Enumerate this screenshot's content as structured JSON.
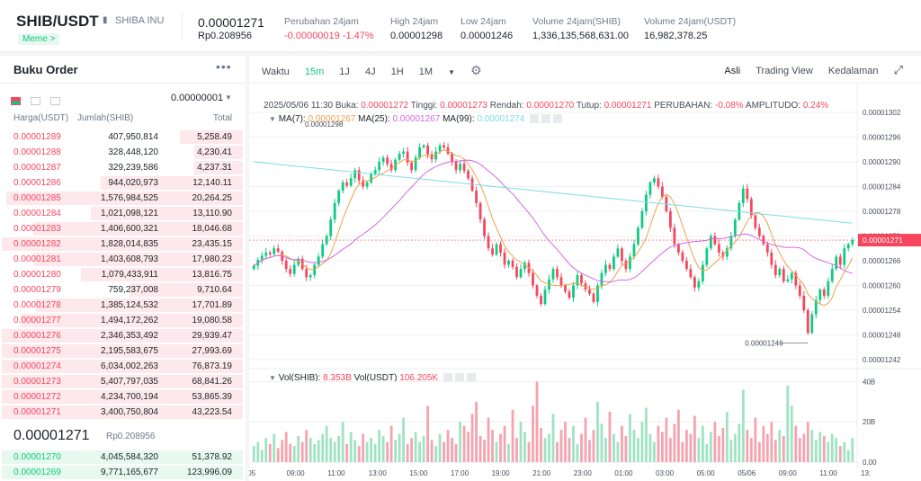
{
  "header": {
    "pair": "SHIB/USDT",
    "icon": "book-icon",
    "name": "SHIBA INU",
    "tag": "Meme",
    "tag_arrow": ">",
    "last_price": "0.00001271",
    "last_price_idr": "Rp0.208956",
    "stats": [
      {
        "label": "Perubahan 24jam",
        "value": "-0.00000019 -1.47%",
        "color": "#f6465d"
      },
      {
        "label": "High 24jam",
        "value": "0.00001298"
      },
      {
        "label": "Low 24jam",
        "value": "0.00001246"
      },
      {
        "label": "Volume 24jam(SHIB)",
        "value": "1,336,135,568,631.00"
      },
      {
        "label": "Volume 24jam(USDT)",
        "value": "16,982,378.25"
      }
    ]
  },
  "orderbook": {
    "title": "Buku Order",
    "more": "•••",
    "precision": "0.00000001",
    "precision_arrow": "▼",
    "headers": [
      "Harga(USDT)",
      "Jumlah(SHIB)",
      "Total"
    ],
    "asks": [
      {
        "price": "0.00001289",
        "amount": "407,950,814",
        "total": "5,258.49",
        "depth": 0.26
      },
      {
        "price": "0.00001288",
        "amount": "328,448,120",
        "total": "4,230.41",
        "depth": 0.2
      },
      {
        "price": "0.00001287",
        "amount": "329,239,586",
        "total": "4,237.31",
        "depth": 0.2
      },
      {
        "price": "0.00001286",
        "amount": "944,020,973",
        "total": "12,140.11",
        "depth": 0.59
      },
      {
        "price": "0.00001285",
        "amount": "1,576,984,525",
        "total": "20,264.25",
        "depth": 0.98
      },
      {
        "price": "0.00001284",
        "amount": "1,021,098,121",
        "total": "13,110.90",
        "depth": 0.63
      },
      {
        "price": "0.00001283",
        "amount": "1,406,600,321",
        "total": "18,046.68",
        "depth": 0.87
      },
      {
        "price": "0.00001282",
        "amount": "1,828,014,835",
        "total": "23,435.15",
        "depth": 1.0
      },
      {
        "price": "0.00001281",
        "amount": "1,403,608,793",
        "total": "17,980.23",
        "depth": 0.87
      },
      {
        "price": "0.00001280",
        "amount": "1,079,433,911",
        "total": "13,816.75",
        "depth": 0.67
      },
      {
        "price": "0.00001279",
        "amount": "759,237,008",
        "total": "9,710.64",
        "depth": 0.47
      },
      {
        "price": "0.00001278",
        "amount": "1,385,124,532",
        "total": "17,701.89",
        "depth": 0.86
      },
      {
        "price": "0.00001277",
        "amount": "1,494,172,262",
        "total": "19,080.58",
        "depth": 0.92
      },
      {
        "price": "0.00001276",
        "amount": "2,346,353,492",
        "total": "29,939.47",
        "depth": 1.0
      },
      {
        "price": "0.00001275",
        "amount": "2,195,583,675",
        "total": "27,993.69",
        "depth": 1.0
      },
      {
        "price": "0.00001274",
        "amount": "6,034,002,263",
        "total": "76,873.19",
        "depth": 1.0
      },
      {
        "price": "0.00001273",
        "amount": "5,407,797,035",
        "total": "68,841.26",
        "depth": 1.0
      },
      {
        "price": "0.00001272",
        "amount": "4,234,700,194",
        "total": "53,865.39",
        "depth": 1.0
      },
      {
        "price": "0.00001271",
        "amount": "3,400,750,804",
        "total": "43,223.54",
        "depth": 1.0
      }
    ],
    "mid_price": "0.00001271",
    "mid_price_idr": "Rp0.208956",
    "bids": [
      {
        "price": "0.00001270",
        "amount": "4,045,584,320",
        "total": "51,378.92",
        "depth": 1.0
      },
      {
        "price": "0.00001269",
        "amount": "9,771,165,677",
        "total": "123,996.09",
        "depth": 1.0
      }
    ]
  },
  "chart_toolbar": {
    "intervals": [
      "Waktu",
      "15m",
      "1J",
      "4J",
      "1H",
      "1M"
    ],
    "active_interval": "15m",
    "more_arrow": "▼",
    "settings_icon": "gear-icon",
    "views": [
      "Asli",
      "Trading View",
      "Kedalaman"
    ],
    "active_view": "Asli",
    "expand_icon": "expand-icon"
  },
  "ohlc": {
    "date": "2025/05/06 11:30",
    "open_label": "Buka:",
    "open": "0.00001272",
    "high_label": "Tinggi:",
    "high": "0.00001273",
    "low_label": "Rendah:",
    "low": "0.00001270",
    "close_label": "Tutup:",
    "close": "0.00001271",
    "change_label": "PERUBAHAN:",
    "change": "-0.08%",
    "amplitude_label": "AMPLITUDO:",
    "amplitude": "0.24%"
  },
  "ma": {
    "arrow": "▼",
    "ma7_label": "MA(7):",
    "ma7": "0.00001267",
    "ma7_color": "#f0a04b",
    "ma25_label": "MA(25):",
    "ma25": "0.00001267",
    "ma25_color": "#d36be0",
    "ma99_label": "MA(99):",
    "ma99": "0.00001274",
    "ma99_color": "#7fdce8"
  },
  "vol": {
    "arrow": "▼",
    "shib_label": "Vol(SHIB):",
    "shib": "8.353B",
    "usdt_label": "Vol(USDT)",
    "usdt": "106.205K"
  },
  "chart_data": {
    "type": "candlestick",
    "price_ticks": [
      "0.00001302",
      "0.00001296",
      "0.00001290",
      "0.00001284",
      "0.00001278",
      "0.00001272",
      "0.00001266",
      "0.00001260",
      "0.00001254",
      "0.00001248",
      "0.00001242"
    ],
    "price_tick_values": [
      1.302e-05,
      1.296e-05,
      1.29e-05,
      1.284e-05,
      1.278e-05,
      1.272e-05,
      1.266e-05,
      1.26e-05,
      1.254e-05,
      1.248e-05,
      1.242e-05
    ],
    "current_price_tag": "0.00001271",
    "high_marker": "0.00001298",
    "low_marker": "0.00001246",
    "vol_ticks": [
      "40B",
      "20B",
      "0.00"
    ],
    "vol_tick_values": [
      40,
      20,
      0
    ],
    "time_ticks": [
      "/05",
      "09:00",
      "11:00",
      "13:00",
      "15:00",
      "17:00",
      "19:00",
      "21:00",
      "23:00",
      "01:00",
      "03:00",
      "05:00",
      "05/06",
      "09:00",
      "11:00",
      "13:"
    ],
    "closes": [
      1.2648,
      1.2662,
      1.2672,
      1.268,
      1.2676,
      1.269,
      1.2682,
      1.266,
      1.264,
      1.2628,
      1.265,
      1.2665,
      1.264,
      1.262,
      1.2625,
      1.265,
      1.267,
      1.27,
      1.272,
      1.276,
      1.28,
      1.283,
      1.285,
      1.2842,
      1.286,
      1.288,
      1.2855,
      1.284,
      1.285,
      1.287,
      1.288,
      1.29,
      1.291,
      1.2895,
      1.288,
      1.2905,
      1.292,
      1.2925,
      1.2898,
      1.288,
      1.291,
      1.2935,
      1.294,
      1.2918,
      1.2906,
      1.2925,
      1.294,
      1.2935,
      1.292,
      1.29,
      1.288,
      1.2895,
      1.2878,
      1.286,
      1.283,
      1.28,
      1.276,
      1.272,
      1.269,
      1.2675,
      1.27,
      1.268,
      1.265,
      1.266,
      1.2645,
      1.262,
      1.264,
      1.2655,
      1.263,
      1.26,
      1.2575,
      1.2555,
      1.259,
      1.2615,
      1.264,
      1.262,
      1.26,
      1.2585,
      1.257,
      1.26,
      1.2625,
      1.2605,
      1.259,
      1.258,
      1.256,
      1.26,
      1.263,
      1.265,
      1.264,
      1.267,
      1.269,
      1.266,
      1.264,
      1.267,
      1.27,
      1.274,
      1.278,
      1.282,
      1.285,
      1.286,
      1.284,
      1.2815,
      1.278,
      1.274,
      1.27,
      1.268,
      1.266,
      1.264,
      1.262,
      1.2595,
      1.261,
      1.265,
      1.269,
      1.272,
      1.27,
      1.268,
      1.267,
      1.269,
      1.272,
      1.276,
      1.28,
      1.2835,
      1.281,
      1.277,
      1.274,
      1.272,
      1.27,
      1.268,
      1.265,
      1.2625,
      1.264,
      1.261,
      1.2615,
      1.263,
      1.26,
      1.2575,
      1.254,
      1.2485,
      1.253,
      1.2565,
      1.259,
      1.2575,
      1.261,
      1.264,
      1.267,
      1.265,
      1.269,
      1.27,
      1.271
    ],
    "volumes": [
      8,
      10,
      6,
      12,
      9,
      14,
      7,
      11,
      15,
      9,
      8,
      13,
      10,
      16,
      12,
      9,
      11,
      14,
      18,
      12,
      10,
      13,
      20,
      9,
      15,
      11,
      8,
      14,
      10,
      12,
      9,
      16,
      13,
      10,
      18,
      11,
      14,
      22,
      9,
      12,
      15,
      10,
      13,
      28,
      11,
      8,
      14,
      10,
      16,
      12,
      9,
      20,
      18,
      15,
      24,
      30,
      13,
      11,
      22,
      16,
      10,
      14,
      18,
      9,
      26,
      12,
      20,
      15,
      10,
      28,
      40,
      17,
      12,
      14,
      24,
      10,
      16,
      20,
      12,
      18,
      9,
      14,
      22,
      11,
      16,
      30,
      19,
      12,
      25,
      14,
      10,
      18,
      13,
      24,
      16,
      12,
      20,
      27,
      14,
      10,
      18,
      15,
      22,
      12,
      19,
      26,
      10,
      16,
      14,
      23,
      12,
      18,
      9,
      15,
      20,
      13,
      17,
      25,
      11,
      14,
      19,
      36,
      16,
      12,
      22,
      10,
      18,
      14,
      20,
      11,
      16,
      13,
      38,
      28,
      18,
      12,
      14,
      20,
      16,
      11,
      15,
      13,
      10,
      14,
      12
    ]
  }
}
